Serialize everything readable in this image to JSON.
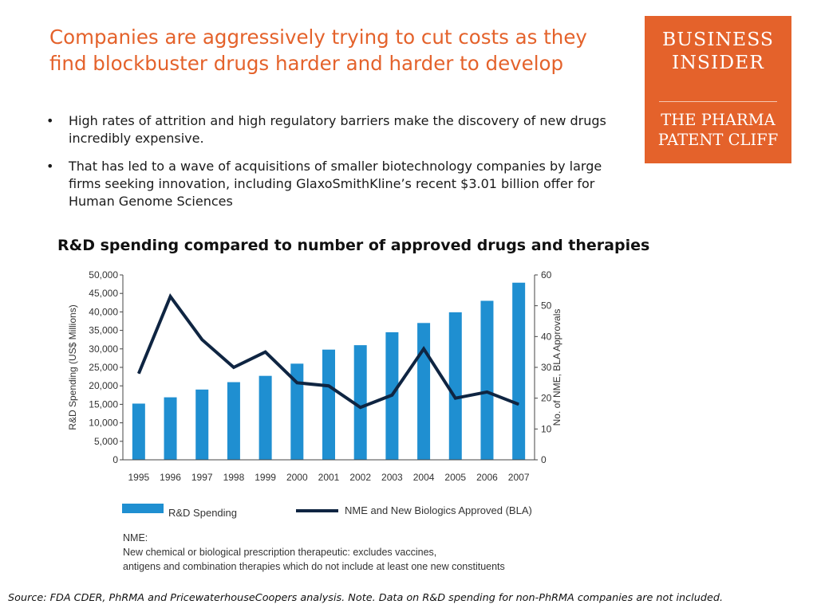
{
  "headline": "Companies are aggressively trying to cut costs as they find blockbuster drugs harder and harder to develop",
  "bullets": [
    "High rates of attrition and high regulatory barriers make the discovery of new drugs incredibly expensive.",
    "That has led to a wave of acquisitions of smaller biotechnology companies by large firms seeking innovation, including GlaxoSmithKline’s recent $3.01 billion offer for Human Genome Sciences"
  ],
  "bullet_glyph": "•",
  "logo": {
    "line1": "BUSINESS",
    "line2": "INSIDER",
    "subtitle": "THE PHARMA PATENT CLIFF",
    "background_color": "#e4622b"
  },
  "note": {
    "label": "NME:",
    "text_line1": "New chemical or biological prescription therapeutic: excludes vaccines,",
    "text_line2": "antigens and combination therapies which do not include at least one new constituents"
  },
  "source": "Source: FDA CDER, PhRMA and PricewaterhouseCoopers analysis. Note. Data on R&D spending for non-PhRMA companies are not included.",
  "chart_data": {
    "type": "bar+line",
    "title": "R&D spending compared to number of approved drugs and therapies",
    "categories": [
      "1995",
      "1996",
      "1997",
      "1998",
      "1999",
      "2000",
      "2001",
      "2002",
      "2003",
      "2004",
      "2005",
      "2006",
      "2007"
    ],
    "series": [
      {
        "name": "R&D Spending",
        "type": "bar",
        "axis": "left",
        "color": "#1f8fd1",
        "values": [
          15200,
          16900,
          19000,
          21000,
          22700,
          26000,
          29800,
          31000,
          34500,
          37000,
          39900,
          43000,
          47900
        ]
      },
      {
        "name": "NME and New Biologics Approved (BLA)",
        "type": "line",
        "axis": "right",
        "color": "#0f2542",
        "values": [
          28,
          53,
          39,
          30,
          35,
          25,
          24,
          17,
          21,
          36,
          20,
          22,
          18
        ]
      }
    ],
    "ylabel": "R&D Spending (US$ Millions)",
    "ylabel_right": "No. of NME, BLA Approvals",
    "ylim": [
      0,
      50000
    ],
    "ylim_right": [
      0,
      60
    ],
    "yticks": [
      "0",
      "5,000",
      "10,000",
      "15,000",
      "20,000",
      "25,000",
      "30,000",
      "35,000",
      "40,000",
      "45,000",
      "50,000"
    ],
    "yticks_right": [
      "0",
      "10",
      "20",
      "30",
      "40",
      "50",
      "60"
    ],
    "legend_position": "bottom",
    "grid": false
  }
}
